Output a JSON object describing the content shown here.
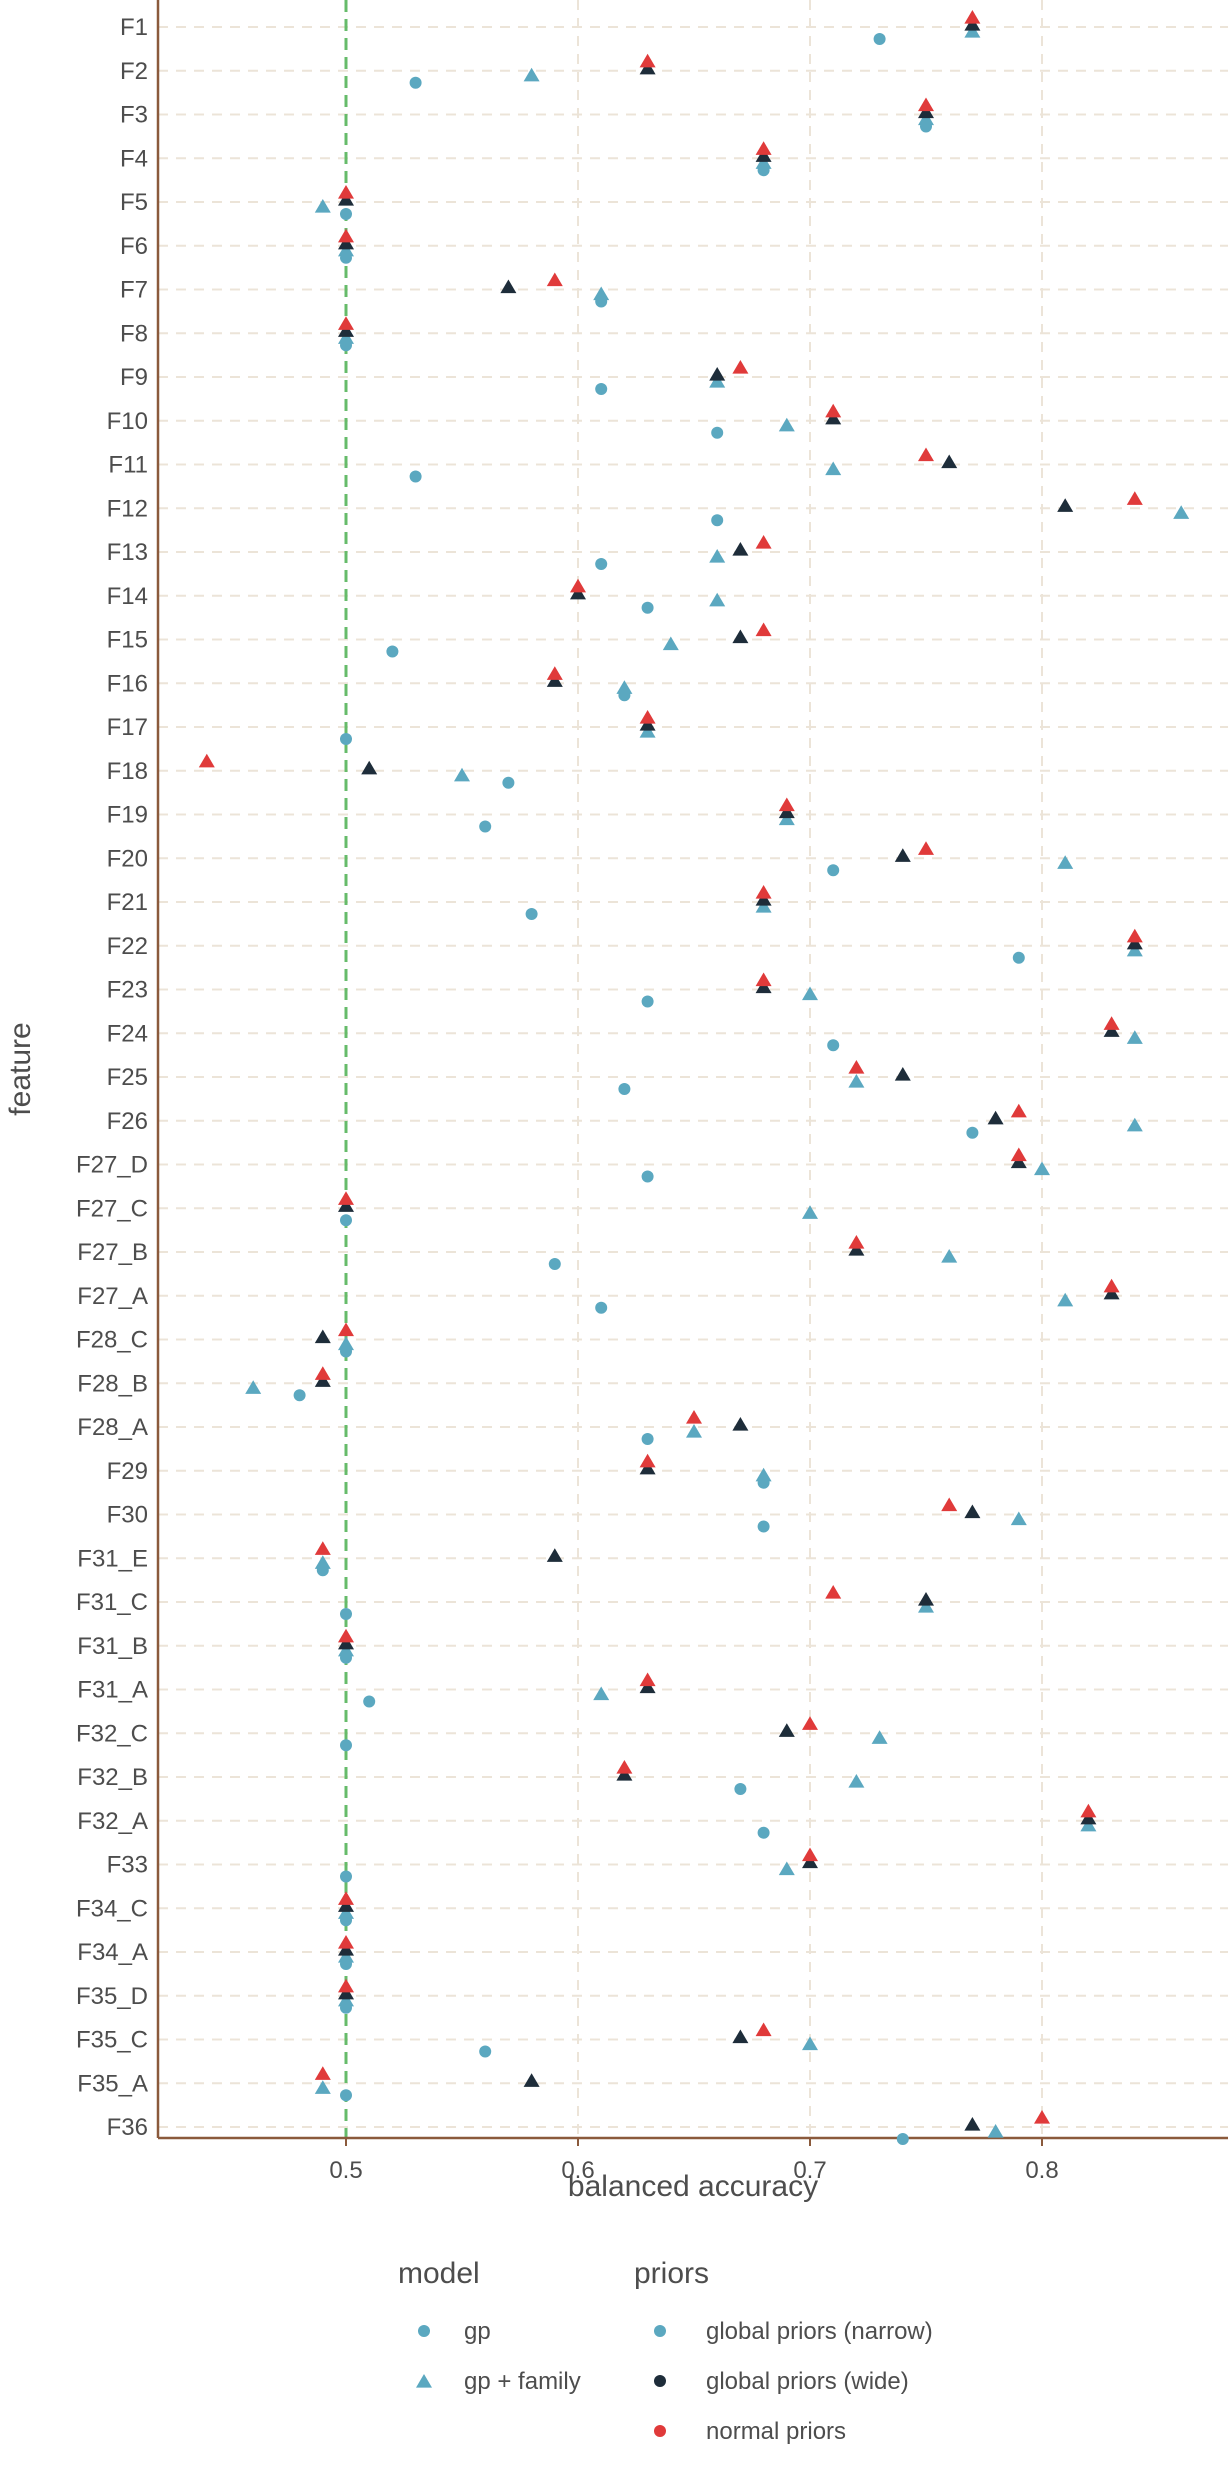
{
  "chart_data": {
    "type": "scatter",
    "title": "",
    "xlabel": "balanced accuracy",
    "ylabel": "feature",
    "xlim": [
      0.42,
      0.875
    ],
    "xticks": [
      0.5,
      0.6,
      0.7,
      0.8
    ],
    "xtick_labels": [
      "0.5",
      "0.6",
      "0.7",
      "0.8"
    ],
    "reference_line": {
      "x": 0.5,
      "color": "#66bb6a",
      "style": "dashed"
    },
    "grid": true,
    "legend_position": "bottom",
    "features": [
      "F1",
      "F2",
      "F3",
      "F4",
      "F5",
      "F6",
      "F7",
      "F8",
      "F9",
      "F10",
      "F11",
      "F12",
      "F13",
      "F14",
      "F15",
      "F16",
      "F17",
      "F18",
      "F19",
      "F20",
      "F21",
      "F22",
      "F23",
      "F24",
      "F25",
      "F26",
      "F27_D",
      "F27_C",
      "F27_B",
      "F27_A",
      "F28_C",
      "F28_B",
      "F28_A",
      "F29",
      "F30",
      "F31_E",
      "F31_C",
      "F31_B",
      "F31_A",
      "F32_C",
      "F32_B",
      "F32_A",
      "F33",
      "F34_C",
      "F34_A",
      "F35_D",
      "F35_C",
      "F35_A",
      "F36"
    ],
    "legends": [
      {
        "title": "model",
        "items": [
          {
            "label": "gp",
            "shape": "circle",
            "color": "#5ba8c0"
          },
          {
            "label": "gp + family",
            "shape": "triangle",
            "color": "#5ba8c0"
          }
        ]
      },
      {
        "title": "priors",
        "items": [
          {
            "label": "global priors (narrow)",
            "shape": "circle",
            "color": "#5ba8c0"
          },
          {
            "label": "global priors (wide)",
            "shape": "circle",
            "color": "#1e2d3a"
          },
          {
            "label": "normal priors",
            "shape": "circle",
            "color": "#e03a3a"
          }
        ]
      }
    ],
    "series": [
      {
        "model": "gp",
        "priors": "global priors (narrow)",
        "shape": "circle",
        "color": "#5ba8c0",
        "values": [
          0.73,
          0.53,
          0.75,
          0.68,
          0.5,
          0.5,
          0.61,
          0.5,
          0.61,
          0.66,
          0.53,
          0.66,
          0.61,
          0.63,
          0.52,
          0.62,
          0.5,
          0.57,
          0.56,
          0.71,
          0.58,
          0.79,
          0.63,
          0.71,
          0.62,
          0.77,
          0.63,
          0.5,
          0.59,
          0.61,
          0.5,
          0.48,
          0.63,
          0.68,
          0.68,
          0.49,
          0.5,
          0.5,
          0.51,
          0.5,
          0.67,
          0.68,
          0.5,
          0.5,
          0.5,
          0.5,
          0.56,
          0.5,
          0.74
        ]
      },
      {
        "model": "gp + family",
        "priors": "global priors (narrow)",
        "shape": "triangle",
        "color": "#5ba8c0",
        "values": [
          0.77,
          0.58,
          0.75,
          0.68,
          0.49,
          0.5,
          0.61,
          0.5,
          0.66,
          0.69,
          0.71,
          0.86,
          0.66,
          0.66,
          0.64,
          0.62,
          0.63,
          0.55,
          0.69,
          0.81,
          0.68,
          0.84,
          0.7,
          0.84,
          0.72,
          0.84,
          0.8,
          0.7,
          0.76,
          0.81,
          0.5,
          0.46,
          0.65,
          0.68,
          0.79,
          0.49,
          0.75,
          0.5,
          0.61,
          0.73,
          0.72,
          0.82,
          0.69,
          0.5,
          0.5,
          0.5,
          0.7,
          0.49,
          0.78
        ]
      },
      {
        "model": "gp + family",
        "priors": "global priors (wide)",
        "shape": "triangle",
        "color": "#1e2d3a",
        "values": [
          0.77,
          0.63,
          0.75,
          0.68,
          0.5,
          0.5,
          0.57,
          0.5,
          0.66,
          0.71,
          0.76,
          0.81,
          0.67,
          0.6,
          0.67,
          0.59,
          0.63,
          0.51,
          0.69,
          0.74,
          0.68,
          0.84,
          0.68,
          0.83,
          0.74,
          0.78,
          0.79,
          0.5,
          0.72,
          0.83,
          0.49,
          0.49,
          0.67,
          0.63,
          0.77,
          0.59,
          0.75,
          0.5,
          0.63,
          0.69,
          0.62,
          0.82,
          0.7,
          0.5,
          0.5,
          0.5,
          0.67,
          0.58,
          0.77
        ]
      },
      {
        "model": "gp + family",
        "priors": "normal priors",
        "shape": "triangle",
        "color": "#e03a3a",
        "values": [
          0.77,
          0.63,
          0.75,
          0.68,
          0.5,
          0.5,
          0.59,
          0.5,
          0.67,
          0.71,
          0.75,
          0.84,
          0.68,
          0.6,
          0.68,
          0.59,
          0.63,
          0.44,
          0.69,
          0.75,
          0.68,
          0.84,
          0.68,
          0.83,
          0.72,
          0.79,
          0.79,
          0.5,
          0.72,
          0.83,
          0.5,
          0.49,
          0.65,
          0.63,
          0.76,
          0.49,
          0.71,
          0.5,
          0.63,
          0.7,
          0.62,
          0.82,
          0.7,
          0.5,
          0.5,
          0.5,
          0.68,
          0.49,
          0.8
        ]
      }
    ]
  }
}
